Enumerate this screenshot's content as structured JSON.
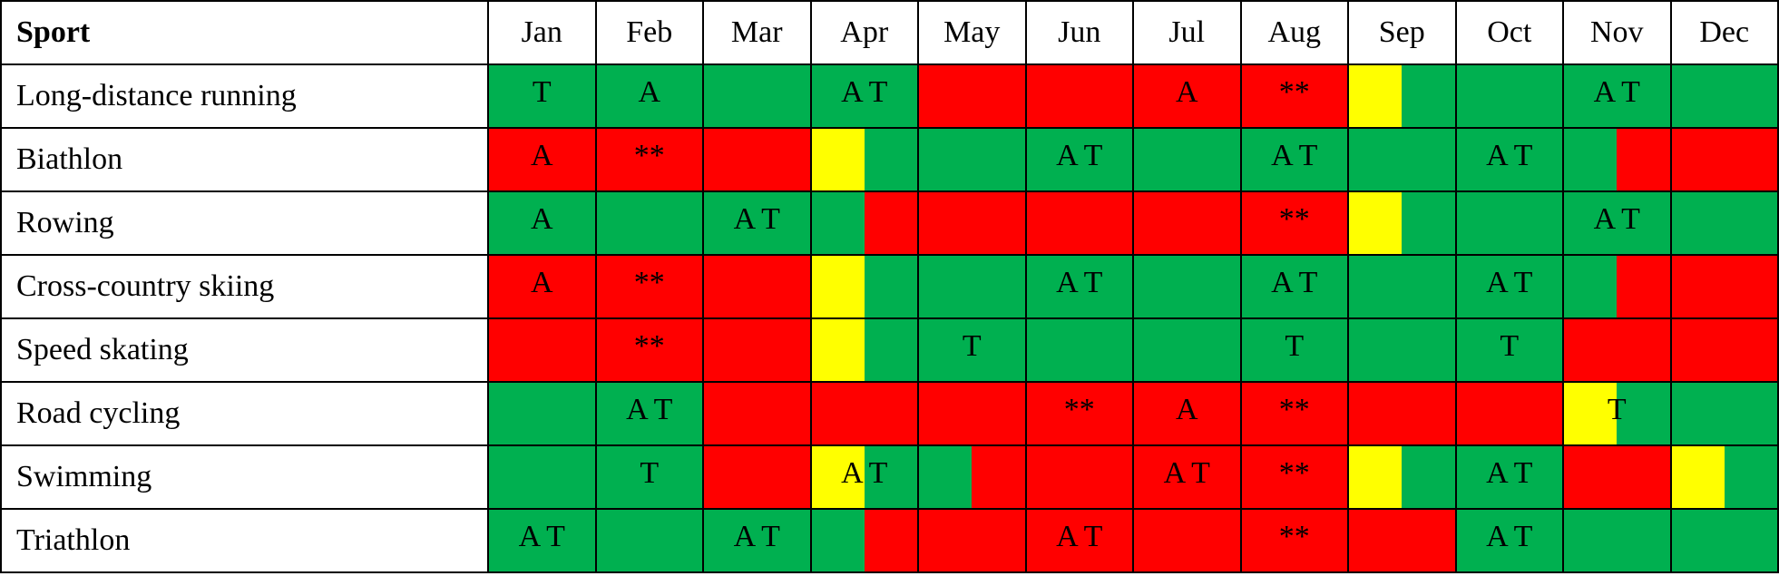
{
  "table": {
    "header": [
      "Sport",
      "Jan",
      "Feb",
      "Mar",
      "Apr",
      "May",
      "Jun",
      "Jul",
      "Aug",
      "Sep",
      "Oct",
      "Nov",
      "Dec"
    ],
    "rows": [
      {
        "sport": "Long-distance running",
        "cells": [
          {
            "fill": [
              "#00b050"
            ],
            "label": "T"
          },
          {
            "fill": [
              "#00b050"
            ],
            "label": "A"
          },
          {
            "fill": [
              "#00b050"
            ]
          },
          {
            "fill": [
              "#00b050"
            ],
            "label": "A T"
          },
          {
            "fill": [
              "#ff0000"
            ]
          },
          {
            "fill": [
              "#ff0000"
            ]
          },
          {
            "fill": [
              "#ff0000"
            ],
            "label": "A"
          },
          {
            "fill": [
              "#ff0000"
            ],
            "label": "**"
          },
          {
            "fill": [
              "#ffff00",
              "#00b050"
            ]
          },
          {
            "fill": [
              "#00b050"
            ]
          },
          {
            "fill": [
              "#00b050"
            ],
            "label": "A T"
          },
          {
            "fill": [
              "#00b050"
            ]
          }
        ]
      },
      {
        "sport": "Biathlon",
        "cells": [
          {
            "fill": [
              "#ff0000"
            ],
            "label": "A"
          },
          {
            "fill": [
              "#ff0000"
            ],
            "label": "**"
          },
          {
            "fill": [
              "#ff0000"
            ]
          },
          {
            "fill": [
              "#ffff00",
              "#00b050"
            ]
          },
          {
            "fill": [
              "#00b050"
            ]
          },
          {
            "fill": [
              "#00b050"
            ],
            "label": "A T"
          },
          {
            "fill": [
              "#00b050"
            ]
          },
          {
            "fill": [
              "#00b050"
            ],
            "label": "A T"
          },
          {
            "fill": [
              "#00b050"
            ]
          },
          {
            "fill": [
              "#00b050"
            ],
            "label": "A T"
          },
          {
            "fill": [
              "#00b050",
              "#ff0000"
            ]
          },
          {
            "fill": [
              "#ff0000"
            ]
          }
        ]
      },
      {
        "sport": "Rowing",
        "cells": [
          {
            "fill": [
              "#00b050"
            ],
            "label": "A"
          },
          {
            "fill": [
              "#00b050"
            ]
          },
          {
            "fill": [
              "#00b050"
            ],
            "label": "A T"
          },
          {
            "fill": [
              "#00b050",
              "#ff0000"
            ]
          },
          {
            "fill": [
              "#ff0000"
            ]
          },
          {
            "fill": [
              "#ff0000"
            ]
          },
          {
            "fill": [
              "#ff0000"
            ]
          },
          {
            "fill": [
              "#ff0000"
            ],
            "label": "**"
          },
          {
            "fill": [
              "#ffff00",
              "#00b050"
            ]
          },
          {
            "fill": [
              "#00b050"
            ]
          },
          {
            "fill": [
              "#00b050"
            ],
            "label": "A T"
          },
          {
            "fill": [
              "#00b050"
            ]
          }
        ]
      },
      {
        "sport": "Cross-country skiing",
        "cells": [
          {
            "fill": [
              "#ff0000"
            ],
            "label": "A"
          },
          {
            "fill": [
              "#ff0000"
            ],
            "label": "**"
          },
          {
            "fill": [
              "#ff0000"
            ]
          },
          {
            "fill": [
              "#ffff00",
              "#00b050"
            ]
          },
          {
            "fill": [
              "#00b050"
            ]
          },
          {
            "fill": [
              "#00b050"
            ],
            "label": "A T"
          },
          {
            "fill": [
              "#00b050"
            ]
          },
          {
            "fill": [
              "#00b050"
            ],
            "label": "A T"
          },
          {
            "fill": [
              "#00b050"
            ]
          },
          {
            "fill": [
              "#00b050"
            ],
            "label": "A T"
          },
          {
            "fill": [
              "#00b050",
              "#ff0000"
            ]
          },
          {
            "fill": [
              "#ff0000"
            ]
          }
        ]
      },
      {
        "sport": "Speed skating",
        "cells": [
          {
            "fill": [
              "#ff0000"
            ]
          },
          {
            "fill": [
              "#ff0000"
            ],
            "label": "**"
          },
          {
            "fill": [
              "#ff0000"
            ]
          },
          {
            "fill": [
              "#ffff00",
              "#00b050"
            ]
          },
          {
            "fill": [
              "#00b050"
            ],
            "label": "T"
          },
          {
            "fill": [
              "#00b050"
            ]
          },
          {
            "fill": [
              "#00b050"
            ]
          },
          {
            "fill": [
              "#00b050"
            ],
            "label": "T"
          },
          {
            "fill": [
              "#00b050"
            ]
          },
          {
            "fill": [
              "#00b050"
            ],
            "label": "T"
          },
          {
            "fill": [
              "#ff0000"
            ]
          },
          {
            "fill": [
              "#ff0000"
            ]
          }
        ]
      },
      {
        "sport": "Road cycling",
        "cells": [
          {
            "fill": [
              "#00b050"
            ]
          },
          {
            "fill": [
              "#00b050"
            ],
            "label": "A T"
          },
          {
            "fill": [
              "#ff0000"
            ]
          },
          {
            "fill": [
              "#ff0000"
            ]
          },
          {
            "fill": [
              "#ff0000"
            ]
          },
          {
            "fill": [
              "#ff0000"
            ],
            "label": "**"
          },
          {
            "fill": [
              "#ff0000"
            ],
            "label": "A"
          },
          {
            "fill": [
              "#ff0000"
            ],
            "label": "**"
          },
          {
            "fill": [
              "#ff0000"
            ]
          },
          {
            "fill": [
              "#ff0000"
            ]
          },
          {
            "fill": [
              "#ffff00",
              "#00b050"
            ],
            "label": "T"
          },
          {
            "fill": [
              "#00b050"
            ]
          }
        ]
      },
      {
        "sport": "Swimming",
        "cells": [
          {
            "fill": [
              "#00b050"
            ]
          },
          {
            "fill": [
              "#00b050"
            ],
            "label": "T"
          },
          {
            "fill": [
              "#ff0000"
            ]
          },
          {
            "fill": [
              "#ffff00",
              "#00b050"
            ],
            "label": "A T"
          },
          {
            "fill": [
              "#00b050",
              "#ff0000"
            ]
          },
          {
            "fill": [
              "#ff0000"
            ]
          },
          {
            "fill": [
              "#ff0000"
            ],
            "label": "A T"
          },
          {
            "fill": [
              "#ff0000"
            ],
            "label": "**"
          },
          {
            "fill": [
              "#ffff00",
              "#00b050"
            ]
          },
          {
            "fill": [
              "#00b050"
            ],
            "label": "A T"
          },
          {
            "fill": [
              "#ff0000"
            ]
          },
          {
            "fill": [
              "#ffff00",
              "#00b050"
            ]
          }
        ]
      },
      {
        "sport": "Triathlon",
        "cells": [
          {
            "fill": [
              "#00b050"
            ],
            "label": "A T"
          },
          {
            "fill": [
              "#00b050"
            ]
          },
          {
            "fill": [
              "#00b050"
            ],
            "label": "A T"
          },
          {
            "fill": [
              "#00b050",
              "#ff0000"
            ]
          },
          {
            "fill": [
              "#ff0000"
            ]
          },
          {
            "fill": [
              "#ff0000"
            ],
            "label": "A T"
          },
          {
            "fill": [
              "#ff0000"
            ]
          },
          {
            "fill": [
              "#ff0000"
            ],
            "label": "**"
          },
          {
            "fill": [
              "#ff0000"
            ]
          },
          {
            "fill": [
              "#00b050"
            ],
            "label": "A T"
          },
          {
            "fill": [
              "#00b050"
            ]
          },
          {
            "fill": [
              "#00b050"
            ]
          }
        ]
      }
    ]
  }
}
